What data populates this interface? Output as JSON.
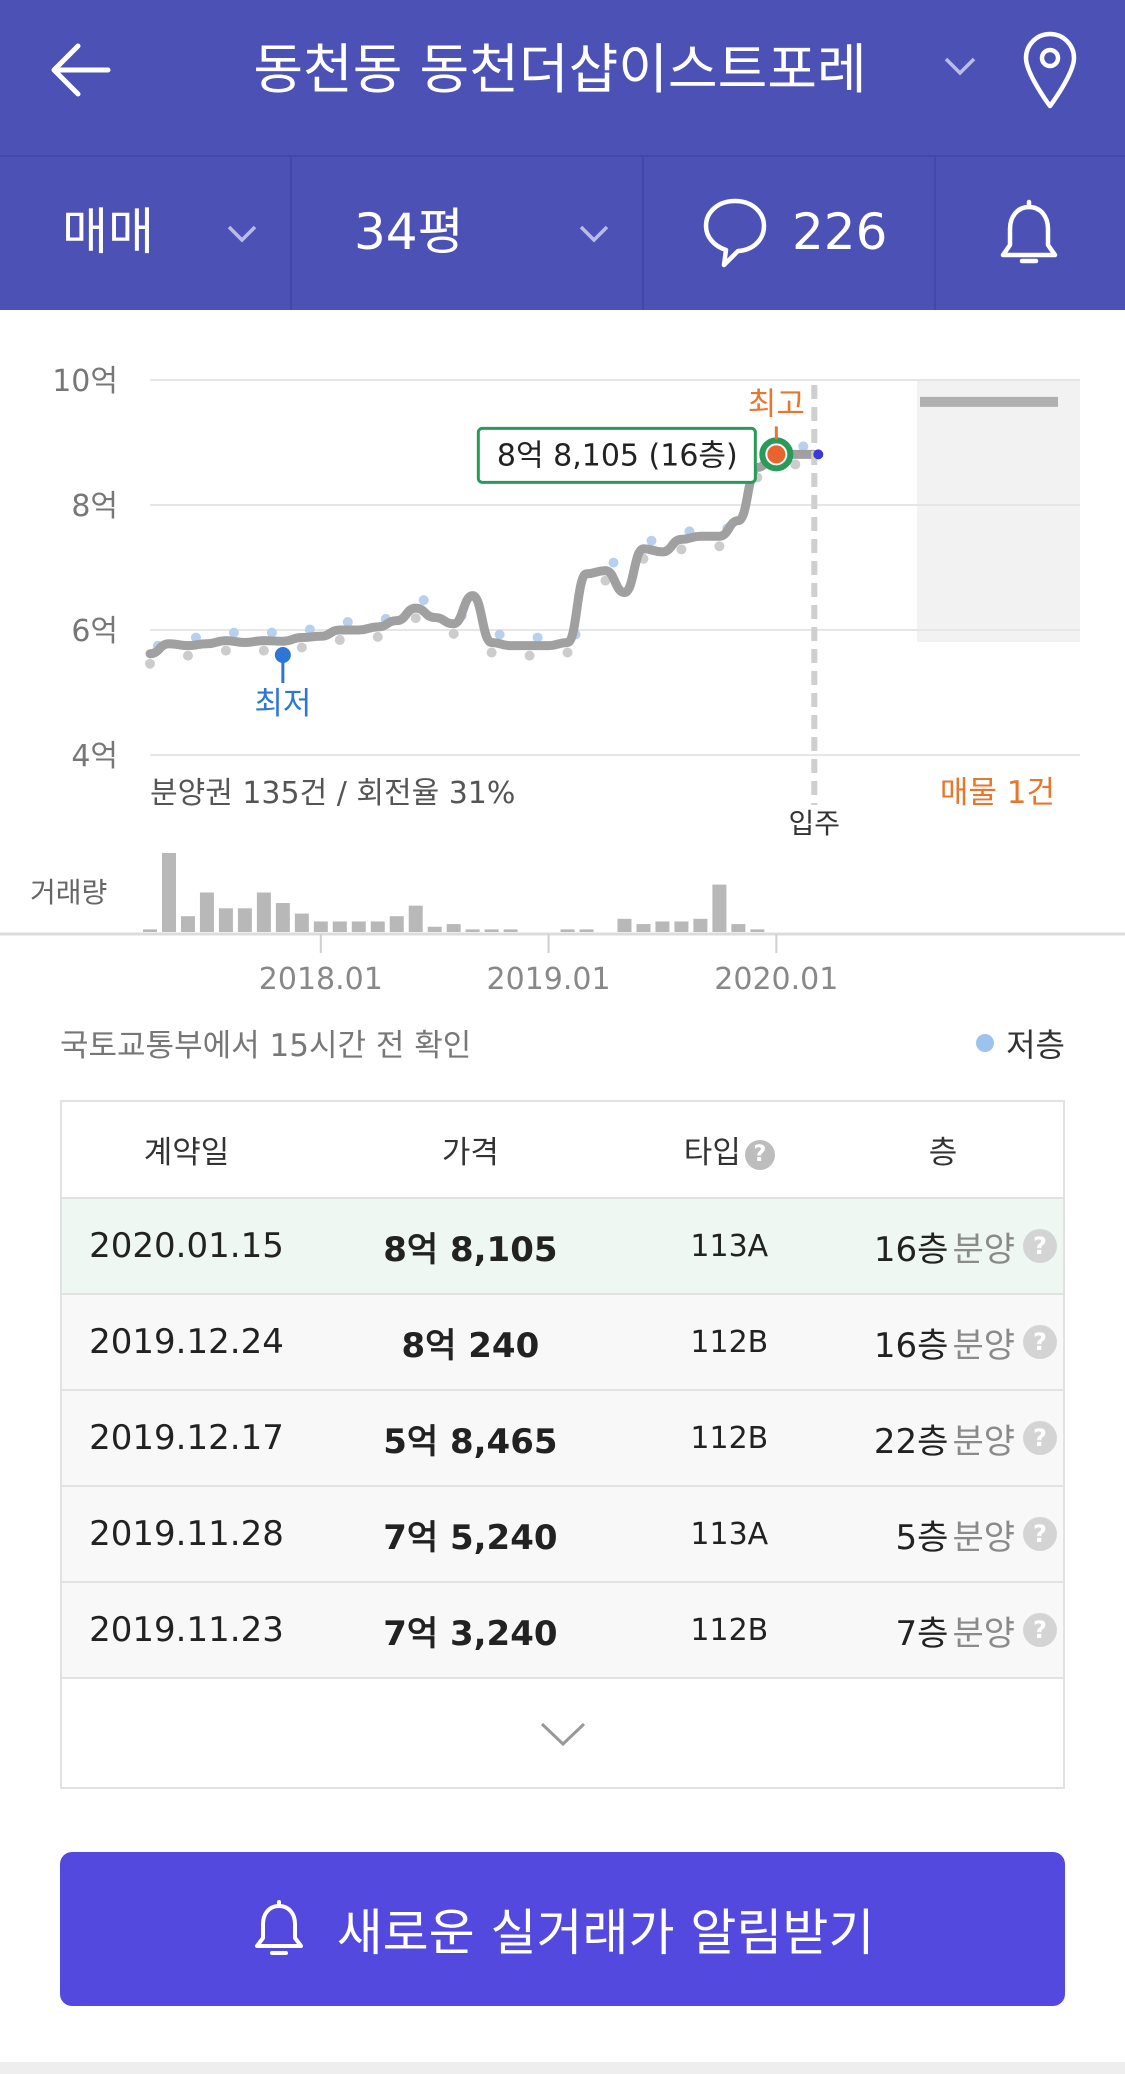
{
  "header": {
    "title": "동천동 동천더샵이스트포레",
    "back_icon": "arrow-left-icon",
    "location_icon": "map-pin-icon"
  },
  "subbar": {
    "trade_type": "매매",
    "area": "34평",
    "comment_count": "226"
  },
  "chart_data": {
    "type": "line",
    "y_tick_labels": [
      "10억",
      "8억",
      "6억",
      "4억"
    ],
    "y_ticks": [
      10,
      8,
      6,
      4
    ],
    "ylim": [
      4,
      10
    ],
    "x_tick_labels": [
      "2018.01",
      "2019.01",
      "2020.01"
    ],
    "x_ticks": [
      "2018-01",
      "2019-01",
      "2020-01"
    ],
    "xlim": [
      "2017-04",
      "2021-05"
    ],
    "ylabel_volume": "거래량",
    "stats_text": "분양권 135건 / 회전율 31%",
    "high_label": "최고",
    "high_annotation": "8억 8,105 (16층)",
    "high_point": {
      "x": "2020-01",
      "y": 8.81
    },
    "low_label": "최저",
    "low_point": {
      "x": "2017-11",
      "y": 5.6
    },
    "move_in_label": "입주",
    "move_in": "2020-03",
    "listing_label": "매물 1건",
    "listing_price": 9.65,
    "trend": [
      {
        "x": "2017-04",
        "y": 5.62
      },
      {
        "x": "2017-05",
        "y": 5.78
      },
      {
        "x": "2017-06",
        "y": 5.75
      },
      {
        "x": "2017-07",
        "y": 5.78
      },
      {
        "x": "2017-08",
        "y": 5.83
      },
      {
        "x": "2017-09",
        "y": 5.8
      },
      {
        "x": "2017-10",
        "y": 5.83
      },
      {
        "x": "2017-11",
        "y": 5.82
      },
      {
        "x": "2017-12",
        "y": 5.88
      },
      {
        "x": "2018-01",
        "y": 5.9
      },
      {
        "x": "2018-02",
        "y": 6.0
      },
      {
        "x": "2018-03",
        "y": 6.0
      },
      {
        "x": "2018-04",
        "y": 6.05
      },
      {
        "x": "2018-05",
        "y": 6.15
      },
      {
        "x": "2018-06",
        "y": 6.35
      },
      {
        "x": "2018-07",
        "y": 6.2
      },
      {
        "x": "2018-08",
        "y": 6.1
      },
      {
        "x": "2018-09",
        "y": 6.55
      },
      {
        "x": "2018-10",
        "y": 5.8
      },
      {
        "x": "2018-11",
        "y": 5.75
      },
      {
        "x": "2018-12",
        "y": 5.75
      },
      {
        "x": "2019-01",
        "y": 5.75
      },
      {
        "x": "2019-02",
        "y": 5.8
      },
      {
        "x": "2019-03",
        "y": 6.9
      },
      {
        "x": "2019-04",
        "y": 6.95
      },
      {
        "x": "2019-05",
        "y": 6.6
      },
      {
        "x": "2019-06",
        "y": 7.3
      },
      {
        "x": "2019-07",
        "y": 7.25
      },
      {
        "x": "2019-08",
        "y": 7.45
      },
      {
        "x": "2019-09",
        "y": 7.5
      },
      {
        "x": "2019-10",
        "y": 7.5
      },
      {
        "x": "2019-11",
        "y": 7.75
      },
      {
        "x": "2019-12",
        "y": 8.6
      },
      {
        "x": "2020-01",
        "y": 8.81
      },
      {
        "x": "2020-02",
        "y": 8.81
      },
      {
        "x": "2020-03",
        "y": 8.81
      }
    ],
    "volume": [
      {
        "x": "2017-04",
        "v": 1
      },
      {
        "x": "2017-05",
        "v": 30
      },
      {
        "x": "2017-06",
        "v": 6
      },
      {
        "x": "2017-07",
        "v": 15
      },
      {
        "x": "2017-08",
        "v": 9
      },
      {
        "x": "2017-09",
        "v": 9
      },
      {
        "x": "2017-10",
        "v": 15
      },
      {
        "x": "2017-11",
        "v": 11
      },
      {
        "x": "2017-12",
        "v": 7
      },
      {
        "x": "2018-01",
        "v": 4
      },
      {
        "x": "2018-02",
        "v": 4
      },
      {
        "x": "2018-03",
        "v": 4
      },
      {
        "x": "2018-04",
        "v": 4
      },
      {
        "x": "2018-05",
        "v": 6
      },
      {
        "x": "2018-06",
        "v": 10
      },
      {
        "x": "2018-07",
        "v": 2
      },
      {
        "x": "2018-08",
        "v": 3
      },
      {
        "x": "2018-09",
        "v": 1
      },
      {
        "x": "2018-10",
        "v": 1
      },
      {
        "x": "2018-11",
        "v": 1
      },
      {
        "x": "2019-02",
        "v": 1
      },
      {
        "x": "2019-03",
        "v": 1
      },
      {
        "x": "2019-05",
        "v": 5
      },
      {
        "x": "2019-06",
        "v": 3
      },
      {
        "x": "2019-07",
        "v": 4
      },
      {
        "x": "2019-08",
        "v": 4
      },
      {
        "x": "2019-09",
        "v": 5
      },
      {
        "x": "2019-10",
        "v": 18
      },
      {
        "x": "2019-11",
        "v": 3
      },
      {
        "x": "2019-12",
        "v": 1
      }
    ]
  },
  "source": "국토교통부에서 15시간 전 확인",
  "legend": {
    "low_floor": "저층",
    "low_floor_color": "#9cc2ee"
  },
  "table": {
    "headers": [
      "계약일",
      "가격",
      "타입",
      "층"
    ],
    "rows": [
      {
        "date": "2020.01.15",
        "price": "8억 8,105",
        "type": "113A",
        "floor": "16층",
        "tag": "분양"
      },
      {
        "date": "2019.12.24",
        "price": "8억 240",
        "type": "112B",
        "floor": "16층",
        "tag": "분양"
      },
      {
        "date": "2019.12.17",
        "price": "5억 8,465",
        "type": "112B",
        "floor": "22층",
        "tag": "분양"
      },
      {
        "date": "2019.11.28",
        "price": "7억 5,240",
        "type": "113A",
        "floor": "5층",
        "tag": "분양"
      },
      {
        "date": "2019.11.23",
        "price": "7억 3,240",
        "type": "112B",
        "floor": "7층",
        "tag": "분양"
      }
    ]
  },
  "alert_button": {
    "label": "새로운 실거래가 알림받기"
  },
  "colors": {
    "header_bg": "#4b51b5",
    "accent_orange": "#e8772e",
    "low_blue": "#2e76d6",
    "high_green": "#2a9a5a",
    "button_bg": "#5449de"
  }
}
